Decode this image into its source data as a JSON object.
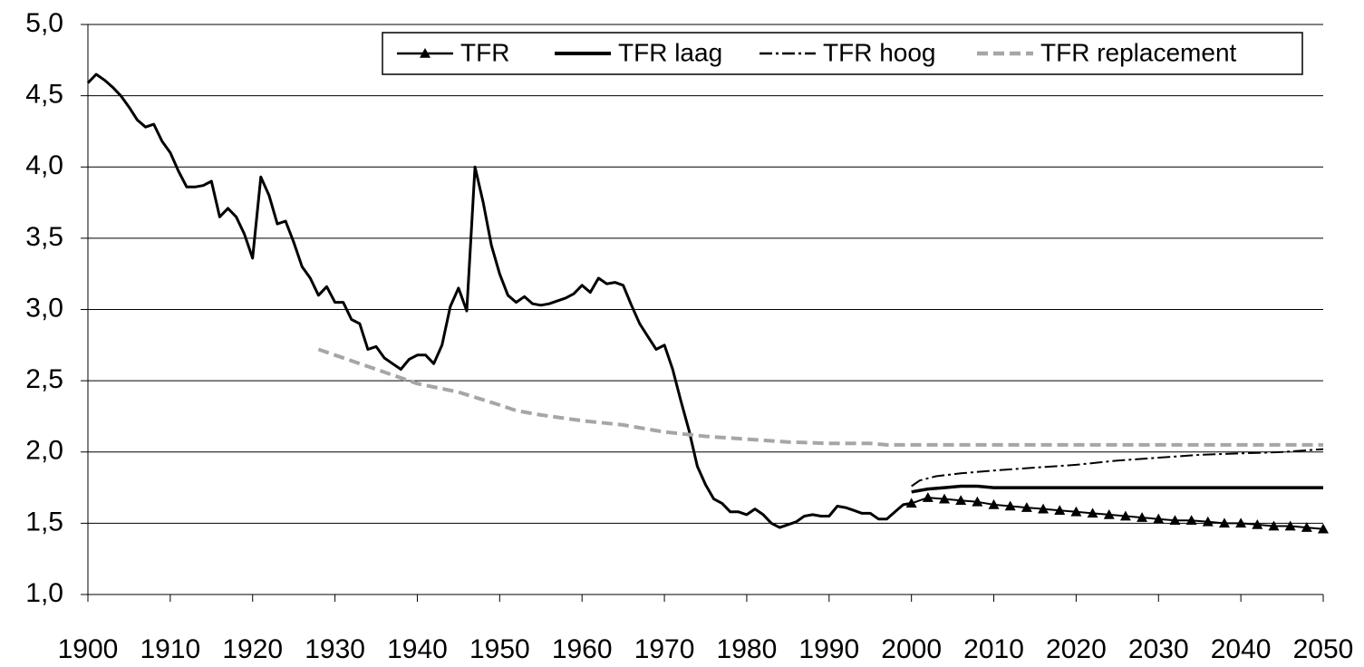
{
  "chart_data": {
    "type": "line",
    "xlim": [
      1900,
      2050
    ],
    "xticks": [
      1900,
      1910,
      1920,
      1930,
      1940,
      1950,
      1960,
      1970,
      1980,
      1990,
      2000,
      2010,
      2020,
      2030,
      2040,
      2050
    ],
    "ylim": [
      1.0,
      5.0
    ],
    "yticks": [
      {
        "value": 1.0,
        "label": "1,0"
      },
      {
        "value": 1.5,
        "label": "1,5"
      },
      {
        "value": 2.0,
        "label": "2,0"
      },
      {
        "value": 2.5,
        "label": "2,5"
      },
      {
        "value": 3.0,
        "label": "3,0"
      },
      {
        "value": 3.5,
        "label": "3,5"
      },
      {
        "value": 4.0,
        "label": "4,0"
      },
      {
        "value": 4.5,
        "label": "4,5"
      },
      {
        "value": 5.0,
        "label": "5,0"
      }
    ],
    "grid": true,
    "legend": "top",
    "observed": {
      "color": "#000000",
      "x": [
        1900,
        1901,
        1902,
        1903,
        1904,
        1905,
        1906,
        1907,
        1908,
        1909,
        1910,
        1911,
        1912,
        1913,
        1914,
        1915,
        1916,
        1917,
        1918,
        1919,
        1920,
        1921,
        1922,
        1923,
        1924,
        1925,
        1926,
        1927,
        1928,
        1929,
        1930,
        1931,
        1932,
        1933,
        1934,
        1935,
        1936,
        1937,
        1938,
        1939,
        1940,
        1941,
        1942,
        1943,
        1944,
        1945,
        1946,
        1947,
        1948,
        1949,
        1950,
        1951,
        1952,
        1953,
        1954,
        1955,
        1956,
        1957,
        1958,
        1959,
        1960,
        1961,
        1962,
        1963,
        1964,
        1965,
        1966,
        1967,
        1968,
        1969,
        1970,
        1971,
        1972,
        1973,
        1974,
        1975,
        1976,
        1977,
        1978,
        1979,
        1980,
        1981,
        1982,
        1983,
        1984,
        1985,
        1986,
        1987,
        1988,
        1989,
        1990,
        1991,
        1992,
        1993,
        1994,
        1995,
        1996,
        1997,
        1998,
        1999,
        2000
      ],
      "values": [
        4.59,
        4.65,
        4.61,
        4.56,
        4.5,
        4.42,
        4.33,
        4.28,
        4.3,
        4.18,
        4.1,
        3.97,
        3.86,
        3.86,
        3.87,
        3.9,
        3.65,
        3.71,
        3.65,
        3.53,
        3.36,
        3.93,
        3.8,
        3.6,
        3.62,
        3.47,
        3.3,
        3.22,
        3.1,
        3.16,
        3.05,
        3.05,
        2.93,
        2.9,
        2.72,
        2.74,
        2.66,
        2.62,
        2.58,
        2.65,
        2.68,
        2.68,
        2.62,
        2.75,
        3.02,
        3.15,
        2.99,
        4.0,
        3.75,
        3.45,
        3.25,
        3.1,
        3.05,
        3.09,
        3.04,
        3.03,
        3.04,
        3.06,
        3.08,
        3.11,
        3.17,
        3.12,
        3.22,
        3.18,
        3.19,
        3.17,
        3.03,
        2.9,
        2.81,
        2.72,
        2.75,
        2.58,
        2.36,
        2.15,
        1.9,
        1.77,
        1.67,
        1.64,
        1.58,
        1.58,
        1.56,
        1.6,
        1.56,
        1.5,
        1.47,
        1.49,
        1.51,
        1.55,
        1.56,
        1.55,
        1.55,
        1.62,
        1.61,
        1.59,
        1.57,
        1.57,
        1.53,
        1.53,
        1.58,
        1.63,
        1.64
      ]
    },
    "series": [
      {
        "name": "TFR",
        "color": "#000000",
        "style": "triangle",
        "x": [
          2000,
          2002,
          2004,
          2006,
          2008,
          2010,
          2012,
          2014,
          2016,
          2018,
          2020,
          2022,
          2024,
          2026,
          2028,
          2030,
          2032,
          2034,
          2036,
          2038,
          2040,
          2042,
          2044,
          2046,
          2048,
          2050
        ],
        "values": [
          1.64,
          1.68,
          1.67,
          1.66,
          1.65,
          1.63,
          1.62,
          1.61,
          1.6,
          1.59,
          1.58,
          1.57,
          1.56,
          1.55,
          1.54,
          1.53,
          1.52,
          1.52,
          1.51,
          1.5,
          1.5,
          1.49,
          1.48,
          1.48,
          1.47,
          1.46
        ]
      },
      {
        "name": "TFR laag",
        "color": "#000000",
        "style": "solid",
        "x": [
          2000,
          2002,
          2004,
          2006,
          2008,
          2010,
          2050
        ],
        "values": [
          1.72,
          1.74,
          1.75,
          1.76,
          1.76,
          1.75,
          1.75
        ]
      },
      {
        "name": "TFR hoog",
        "color": "#000000",
        "style": "dashdot",
        "x": [
          2000,
          2001,
          2003,
          2006,
          2010,
          2015,
          2020,
          2025,
          2030,
          2035,
          2040,
          2045,
          2050
        ],
        "values": [
          1.76,
          1.8,
          1.83,
          1.85,
          1.87,
          1.89,
          1.91,
          1.94,
          1.96,
          1.98,
          1.99,
          2.0,
          2.02
        ]
      },
      {
        "name": "TFR replacement",
        "color": "#a6a6a6",
        "style": "dashed",
        "x": [
          1928,
          1930,
          1935,
          1940,
          1945,
          1950,
          1952,
          1955,
          1960,
          1965,
          1970,
          1975,
          1980,
          1985,
          1990,
          1995,
          1997,
          2050
        ],
        "values": [
          2.72,
          2.68,
          2.58,
          2.48,
          2.42,
          2.33,
          2.29,
          2.26,
          2.22,
          2.19,
          2.14,
          2.11,
          2.09,
          2.07,
          2.06,
          2.06,
          2.05,
          2.05
        ]
      }
    ]
  }
}
